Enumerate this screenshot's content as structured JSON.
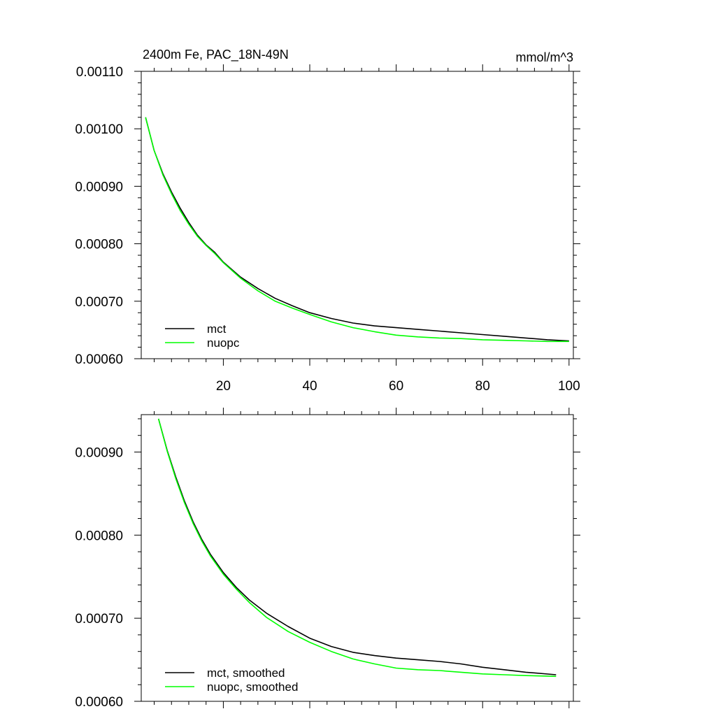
{
  "chart_data": [
    {
      "type": "line",
      "title": "2400m Fe, PAC_18N-49N",
      "units": "mmol/m^3",
      "xlim": [
        1,
        101
      ],
      "ylim": [
        0.0006,
        0.0011
      ],
      "xticks": [
        20,
        40,
        60,
        80,
        100
      ],
      "xtick_labels": [
        "20",
        "40",
        "60",
        "80",
        "100"
      ],
      "yticks": [
        0.0006,
        0.0007,
        0.0008,
        0.0009,
        0.001,
        0.0011
      ],
      "ytick_labels": [
        "0.00060",
        "0.00070",
        "0.00080",
        "0.00090",
        "0.00100",
        "0.00110"
      ],
      "grid": false,
      "legend": "bottom-left",
      "series": [
        {
          "name": "mct",
          "color": "#000000",
          "x": [
            2,
            4,
            6,
            8,
            10,
            12,
            14,
            16,
            18,
            20,
            24,
            28,
            32,
            36,
            40,
            45,
            50,
            55,
            60,
            65,
            70,
            75,
            80,
            85,
            90,
            95,
            100
          ],
          "y": [
            0.00102,
            0.000962,
            0.000922,
            0.00089,
            0.000862,
            0.000837,
            0.000815,
            0.000798,
            0.000785,
            0.000768,
            0.000742,
            0.000722,
            0.000705,
            0.000692,
            0.00068,
            0.00067,
            0.000662,
            0.000657,
            0.000654,
            0.000651,
            0.000648,
            0.000645,
            0.000642,
            0.000639,
            0.000636,
            0.000633,
            0.000631
          ]
        },
        {
          "name": "nuopc",
          "color": "#00ff00",
          "x": [
            2,
            4,
            6,
            8,
            10,
            12,
            14,
            16,
            18,
            20,
            24,
            28,
            32,
            36,
            40,
            45,
            50,
            55,
            60,
            65,
            70,
            75,
            80,
            85,
            90,
            95,
            100
          ],
          "y": [
            0.00102,
            0.000962,
            0.00092,
            0.000887,
            0.000858,
            0.000834,
            0.000813,
            0.000797,
            0.000783,
            0.000767,
            0.00074,
            0.000718,
            0.0007,
            0.000688,
            0.000677,
            0.000664,
            0.000654,
            0.000647,
            0.000641,
            0.000638,
            0.000636,
            0.000635,
            0.000633,
            0.000632,
            0.000631,
            0.00063,
            0.00063
          ]
        }
      ]
    },
    {
      "type": "line",
      "xlim": [
        1,
        101
      ],
      "ylim": [
        0.0006,
        0.000945
      ],
      "xticks": [
        20,
        40,
        60,
        80,
        100
      ],
      "yticks": [
        0.0006,
        0.0007,
        0.0008,
        0.0009
      ],
      "ytick_labels": [
        "0.00060",
        "0.00070",
        "0.00080",
        "0.00090"
      ],
      "grid": false,
      "legend": "bottom-left",
      "series": [
        {
          "name": "mct, smoothed",
          "color": "#000000",
          "x": [
            5,
            7,
            9,
            11,
            13,
            15,
            17,
            20,
            23,
            26,
            30,
            35,
            40,
            45,
            50,
            55,
            60,
            65,
            70,
            75,
            80,
            85,
            90,
            97
          ],
          "y": [
            0.00094,
            0.000902,
            0.00087,
            0.000841,
            0.000816,
            0.000795,
            0.000777,
            0.000755,
            0.000737,
            0.000722,
            0.000706,
            0.00069,
            0.000676,
            0.000666,
            0.000659,
            0.000655,
            0.000652,
            0.00065,
            0.000648,
            0.000645,
            0.000641,
            0.000638,
            0.000635,
            0.000632
          ]
        },
        {
          "name": "nuopc, smoothed",
          "color": "#00ff00",
          "x": [
            5,
            7,
            9,
            11,
            13,
            15,
            17,
            20,
            23,
            26,
            30,
            35,
            40,
            45,
            50,
            55,
            60,
            65,
            70,
            75,
            80,
            85,
            90,
            97
          ],
          "y": [
            0.00094,
            0.000901,
            0.000868,
            0.000839,
            0.000814,
            0.000793,
            0.000775,
            0.000753,
            0.000735,
            0.000719,
            0.000701,
            0.000684,
            0.000671,
            0.00066,
            0.000651,
            0.000645,
            0.00064,
            0.000638,
            0.000637,
            0.000635,
            0.000633,
            0.000632,
            0.000631,
            0.00063
          ]
        }
      ]
    }
  ]
}
